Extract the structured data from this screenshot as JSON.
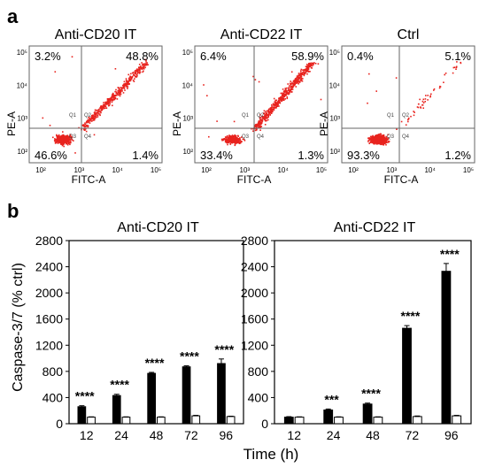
{
  "panel_labels": {
    "a": "a",
    "b": "b"
  },
  "flow": {
    "xlabel": "FITC-A",
    "ylabel": "PE-A",
    "x_ticks": [
      "10²",
      "10³",
      "10⁴",
      "10⁵"
    ],
    "y_ticks": [
      "10²",
      "10³",
      "10⁴",
      "10⁵"
    ],
    "quadrant_ids": [
      "Q1",
      "Q2",
      "Q3",
      "Q4"
    ],
    "dot_color": "#e8231e",
    "plots": [
      {
        "title": "Anti-CD20 IT",
        "q1": "3.2%",
        "q2": "48.8%",
        "q3": "46.6%",
        "q4": "1.4%"
      },
      {
        "title": "Anti-CD22 IT",
        "q1": "6.4%",
        "q2": "58.9%",
        "q3": "33.4%",
        "q4": "1.3%"
      },
      {
        "title": "Ctrl",
        "q1": "0.4%",
        "q2": "5.1%",
        "q3": "93.3%",
        "q4": "1.2%"
      }
    ]
  },
  "chart_data": [
    {
      "type": "bar",
      "title": "Anti-CD20 IT",
      "xlabel": "Time (h)",
      "ylabel": "Caspase-3/7 (% ctrl)",
      "ylim": [
        0,
        2800
      ],
      "yticks": [
        0,
        400,
        800,
        1200,
        1600,
        2000,
        2400,
        2800
      ],
      "categories": [
        "12",
        "24",
        "48",
        "72",
        "96"
      ],
      "series": [
        {
          "fill": "#000000",
          "values": [
            260,
            430,
            770,
            870,
            920
          ],
          "errors": [
            15,
            20,
            15,
            15,
            70
          ]
        },
        {
          "fill": "#ffffff",
          "values": [
            100,
            100,
            100,
            120,
            110
          ],
          "errors": [
            5,
            5,
            5,
            8,
            5
          ]
        }
      ],
      "significance": [
        "****",
        "****",
        "****",
        "****",
        "****"
      ]
    },
    {
      "type": "bar",
      "title": "Anti-CD22 IT",
      "xlabel": "Time (h)",
      "ylabel": "",
      "ylim": [
        0,
        2800
      ],
      "yticks": [
        0,
        400,
        800,
        1200,
        1600,
        2000,
        2400,
        2800
      ],
      "categories": [
        "12",
        "24",
        "48",
        "72",
        "96"
      ],
      "series": [
        {
          "fill": "#000000",
          "values": [
            100,
            210,
            300,
            1460,
            2330
          ],
          "errors": [
            8,
            15,
            15,
            40,
            120
          ]
        },
        {
          "fill": "#ffffff",
          "values": [
            100,
            100,
            100,
            110,
            120
          ],
          "errors": [
            5,
            5,
            5,
            8,
            8
          ]
        }
      ],
      "significance": [
        "",
        "***",
        "****",
        "****",
        "****"
      ]
    }
  ]
}
